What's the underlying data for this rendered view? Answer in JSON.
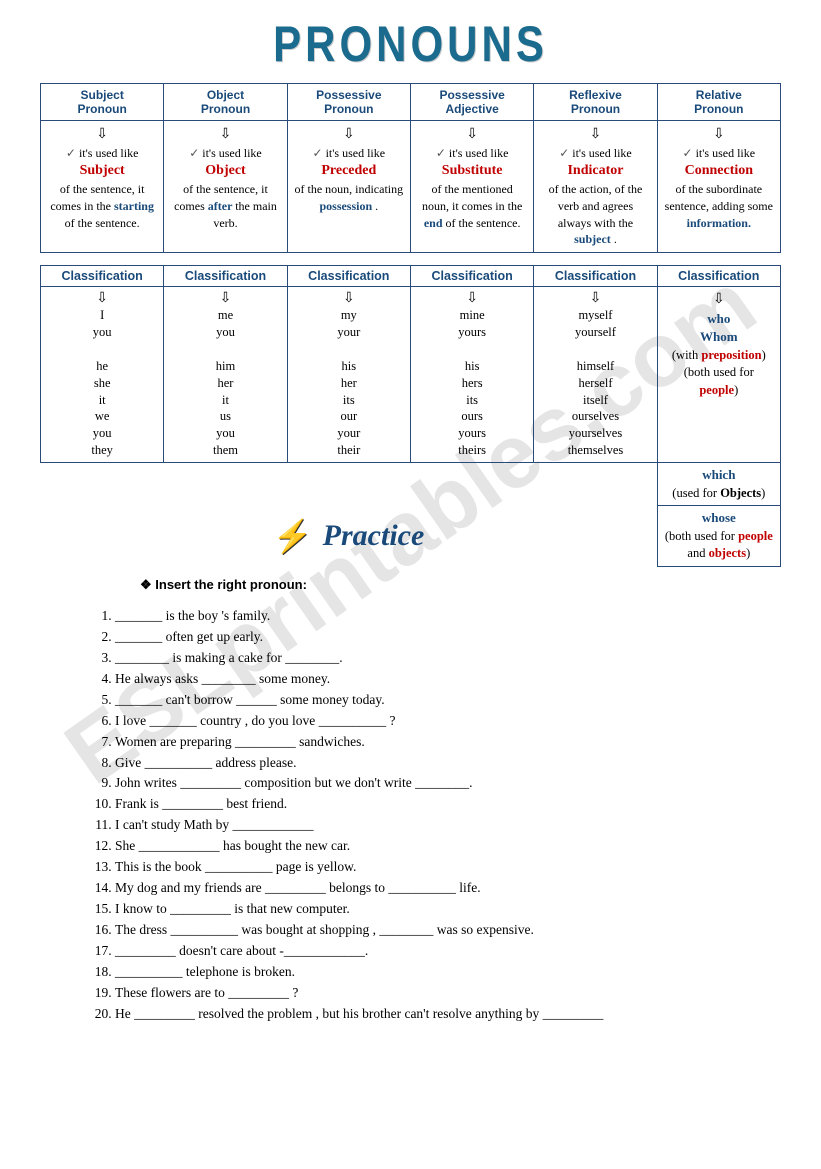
{
  "title": "PRONOUNS",
  "watermark": "ESLprintables.com",
  "colors": {
    "title_color": "#1a6b8e",
    "header_color": "#1a4a7a",
    "key_red": "#c00000",
    "border": "#2a4a7a",
    "lightning": "#ffcc00",
    "background": "#ffffff"
  },
  "table1": {
    "headers": [
      {
        "line1": "Subject",
        "line2": "Pronoun"
      },
      {
        "line1": "Object",
        "line2": "Pronoun"
      },
      {
        "line1": "Possessive",
        "line2": "Pronoun"
      },
      {
        "line1": "Possessive",
        "line2": "Adjective"
      },
      {
        "line1": "Reflexive",
        "line2": "Pronoun"
      },
      {
        "line1": "Relative",
        "line2": "Pronoun"
      }
    ],
    "arrow": "⇩",
    "used_like": "it's used like",
    "cells": [
      {
        "key": "Subject",
        "pre": "",
        "post": "of the sentence, it comes in the",
        "emph": " starting ",
        "tail": "of the sentence."
      },
      {
        "key": "Object",
        "pre": "",
        "post": "of the sentence, it comes",
        "emph": " after ",
        "tail": "the main verb."
      },
      {
        "key": "Preceded",
        "pre": "",
        "post": "of the noun, indicating",
        "emph": " possession ",
        "tail": "."
      },
      {
        "key": "Substitute",
        "pre": "",
        "post": "of the mentioned noun,\nit comes in the",
        "emph": " end ",
        "tail": "of the sentence."
      },
      {
        "key": "Indicator",
        "pre": "",
        "post": "of the action, of the verb and agrees always with the",
        "emph": " subject ",
        "tail": "."
      },
      {
        "key": "Connection",
        "pre": "",
        "post": "of the subordinate sentence, adding some",
        "emph": " information.",
        "tail": ""
      }
    ]
  },
  "table2": {
    "header": "Classification",
    "arrow": "⇩",
    "columns": [
      [
        "I",
        "you",
        "",
        "he",
        "she",
        "it",
        "we",
        "you",
        "they"
      ],
      [
        "me",
        "you",
        "",
        "him",
        "her",
        "it",
        "us",
        "you",
        "them"
      ],
      [
        "my",
        "your",
        "",
        "his",
        "her",
        "its",
        "our",
        "your",
        "their"
      ],
      [
        "mine",
        "yours",
        "",
        "his",
        "hers",
        "its",
        "ours",
        "yours",
        "theirs"
      ],
      [
        "myself",
        "yourself",
        "",
        "himself",
        "herself",
        "itself",
        "ourselves",
        "yourselves",
        "themselves"
      ]
    ],
    "relative": [
      {
        "main": "who",
        "main2": "Whom",
        "note1_pre": "(with ",
        "note1_red": "preposition",
        "note1_post": ")",
        "note2_pre": "(both used for ",
        "note2_red": "people",
        "note2_post": ")"
      },
      {
        "main": "which",
        "note_pre": "(used for ",
        "note_bold": "Objects",
        "note_post": ")"
      },
      {
        "main": "whose",
        "note_pre": "(both used for ",
        "note_red1": "people",
        "note_mid": " and ",
        "note_red2": "objects",
        "note_post": ")"
      }
    ]
  },
  "practice": {
    "title": "Practice",
    "instruction": "❖ Insert the right pronoun:",
    "questions": [
      "_______ is the boy 's family.",
      "_______ often get up early.",
      "________ is making a cake for ________.",
      "He always asks ________ some money.",
      "_______ can't borrow ______ some money today.",
      "I love _______ country , do you love __________ ?",
      "Women are preparing _________ sandwiches.",
      "Give __________ address please.",
      "John writes _________ composition but we don't write ________.",
      "Frank is _________ best friend.",
      "I can't study Math by ____________",
      "She ____________ has bought the new car.",
      "This is the book __________ page is yellow.",
      "My dog and my  friends are _________ belongs to __________ life.",
      "I know to _________ is that new computer.",
      "The dress __________ was bought at shopping , ________ was so expensive.",
      "_________ doesn't care about -____________.",
      "__________ telephone is broken.",
      "These flowers are to _________ ?",
      "He _________ resolved the problem , but his brother can't resolve anything by _________"
    ]
  }
}
